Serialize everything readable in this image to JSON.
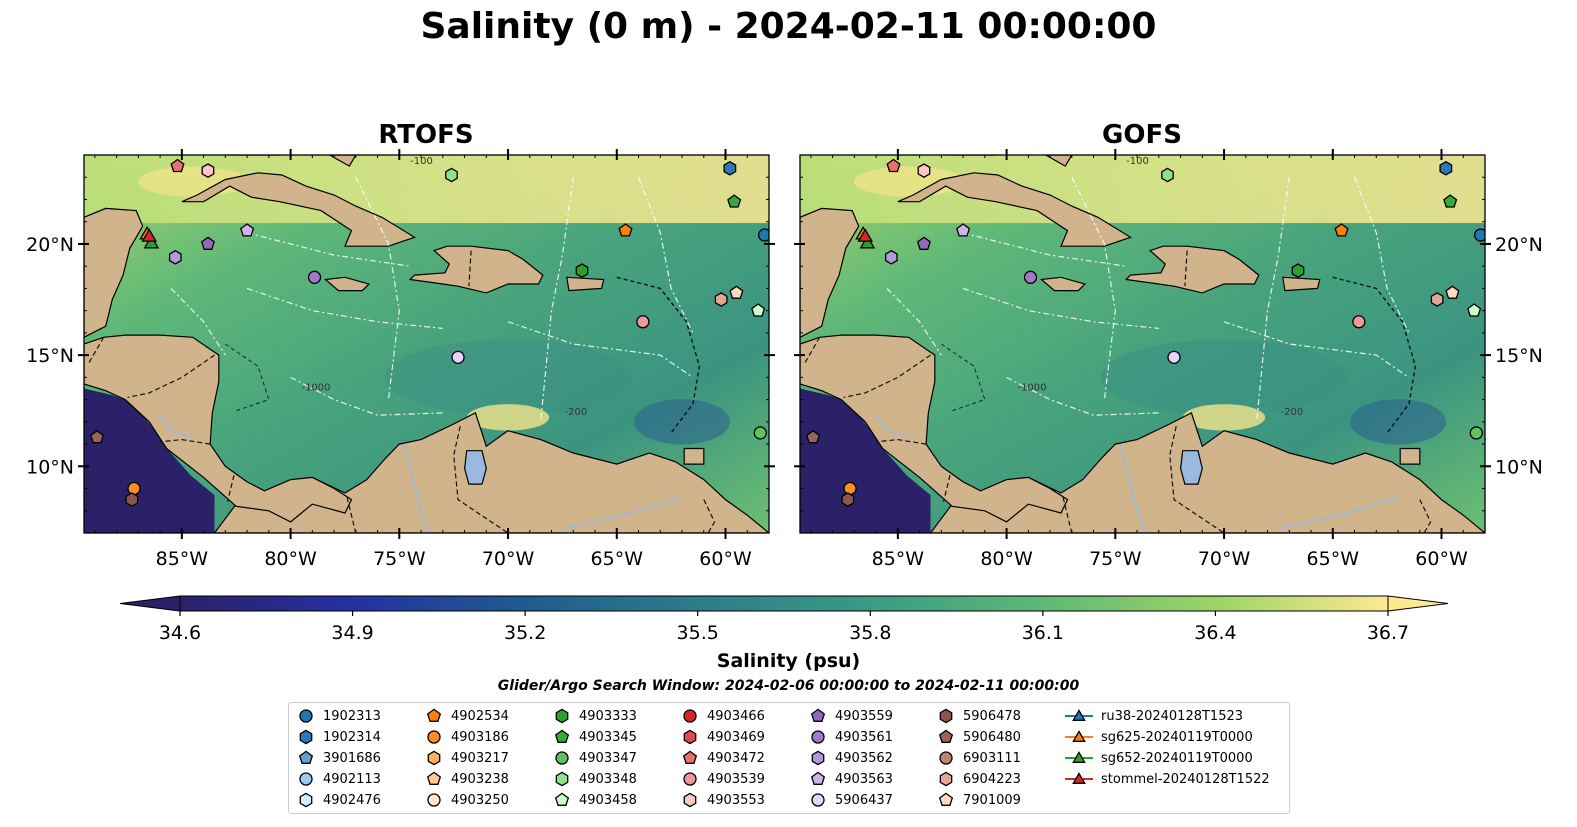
{
  "title": "Salinity (0 m) - 2024-02-11 00:00:00",
  "panels": [
    {
      "title": "RTOFS"
    },
    {
      "title": "GOFS"
    }
  ],
  "map": {
    "lon_range": [
      -89.5,
      -58.0
    ],
    "lat_range": [
      7.0,
      24.0
    ],
    "lon_ticks": [
      -85,
      -80,
      -75,
      -70,
      -65,
      -60
    ],
    "lon_tick_labels": [
      "85°W",
      "80°W",
      "75°W",
      "70°W",
      "65°W",
      "60°W"
    ],
    "lat_ticks": [
      10,
      15,
      20
    ],
    "lat_tick_labels": [
      "10°N",
      "15°N",
      "20°N"
    ],
    "contour_labels": [
      "-100",
      "-1000",
      "-200"
    ],
    "colors": {
      "land": "#d2b48c",
      "lake": "#9ab8e0",
      "pacific": "#2b2169",
      "cb_low": "#2b2169",
      "cb_high": "#fde992"
    }
  },
  "colorbar": {
    "min": 34.6,
    "max": 36.7,
    "ticks": [
      "34.6",
      "34.9",
      "35.2",
      "35.5",
      "35.8",
      "36.1",
      "36.4",
      "36.7"
    ],
    "label": "Salinity (psu)"
  },
  "search_window": "Glider/Argo Search Window: 2024-02-06 00:00:00 to 2024-02-11 00:00:00",
  "legend": [
    {
      "label": "1902313",
      "marker": "circle",
      "color": "#1f77b4",
      "lon": -58.2,
      "lat": 20.4
    },
    {
      "label": "1902314",
      "marker": "hexagon",
      "color": "#2a78b8",
      "lon": -59.8,
      "lat": 23.4
    },
    {
      "label": "3901686",
      "marker": "pentagon",
      "color": "#5fa2d9",
      "lon": null,
      "lat": null
    },
    {
      "label": "4902113",
      "marker": "circle",
      "color": "#9ec9ee",
      "lon": null,
      "lat": null
    },
    {
      "label": "4902476",
      "marker": "hexagon",
      "color": "#d6ecff",
      "lon": null,
      "lat": null
    },
    {
      "label": "4902534",
      "marker": "pentagon",
      "color": "#ff7f0e",
      "lon": -64.6,
      "lat": 20.6
    },
    {
      "label": "4903186",
      "marker": "circle",
      "color": "#ff8c24",
      "lon": -87.2,
      "lat": 9.0
    },
    {
      "label": "4903217",
      "marker": "hexagon",
      "color": "#ffae5c",
      "lon": null,
      "lat": null
    },
    {
      "label": "4903238",
      "marker": "pentagon",
      "color": "#ffcc99",
      "lon": null,
      "lat": null
    },
    {
      "label": "4903250",
      "marker": "circle",
      "color": "#ffe6cc",
      "lon": null,
      "lat": null
    },
    {
      "label": "4903333",
      "marker": "hexagon",
      "color": "#2ca02c",
      "lon": -66.6,
      "lat": 18.8
    },
    {
      "label": "4903345",
      "marker": "pentagon",
      "color": "#3aa83a",
      "lon": -59.6,
      "lat": 21.9
    },
    {
      "label": "4903347",
      "marker": "circle",
      "color": "#5fc35f",
      "lon": -58.4,
      "lat": 11.5
    },
    {
      "label": "4903348",
      "marker": "hexagon",
      "color": "#90e090",
      "lon": -72.6,
      "lat": 23.1
    },
    {
      "label": "4903458",
      "marker": "pentagon",
      "color": "#ccffcc",
      "lon": -58.5,
      "lat": 17.0
    },
    {
      "label": "4903466",
      "marker": "circle",
      "color": "#d62728",
      "lon": null,
      "lat": null
    },
    {
      "label": "4903469",
      "marker": "hexagon",
      "color": "#e04a4a",
      "lon": null,
      "lat": null
    },
    {
      "label": "4903472",
      "marker": "pentagon",
      "color": "#ea6f6f",
      "lon": -85.2,
      "lat": 23.5
    },
    {
      "label": "4903539",
      "marker": "circle",
      "color": "#f09797",
      "lon": -63.8,
      "lat": 16.5
    },
    {
      "label": "4903553",
      "marker": "hexagon",
      "color": "#ffc6c6",
      "lon": -83.8,
      "lat": 23.3
    },
    {
      "label": "4903559",
      "marker": "pentagon",
      "color": "#9467bd",
      "lon": -83.8,
      "lat": 20.0
    },
    {
      "label": "4903561",
      "marker": "circle",
      "color": "#a079c8",
      "lon": -78.9,
      "lat": 18.5
    },
    {
      "label": "4903562",
      "marker": "hexagon",
      "color": "#b597dc",
      "lon": -85.3,
      "lat": 19.4
    },
    {
      "label": "4903563",
      "marker": "pentagon",
      "color": "#cdb4ec",
      "lon": -82.0,
      "lat": 20.6
    },
    {
      "label": "5906437",
      "marker": "circle",
      "color": "#e5d4fa",
      "lon": -72.3,
      "lat": 14.9
    },
    {
      "label": "5906478",
      "marker": "hexagon",
      "color": "#8c564b",
      "lon": -87.3,
      "lat": 8.5
    },
    {
      "label": "5906480",
      "marker": "pentagon",
      "color": "#9a6558",
      "lon": -88.9,
      "lat": 11.3
    },
    {
      "label": "6903111",
      "marker": "circle",
      "color": "#bf8373",
      "lon": null,
      "lat": null
    },
    {
      "label": "6904223",
      "marker": "hexagon",
      "color": "#e2a598",
      "lon": -60.2,
      "lat": 17.5
    },
    {
      "label": "7901009",
      "marker": "pentagon",
      "color": "#ffd9c4",
      "lon": -59.5,
      "lat": 17.8
    },
    {
      "label": "ru38-20240128T1523",
      "marker": "triangle-line",
      "color": "#1f77b4",
      "lon": null,
      "lat": null
    },
    {
      "label": "sg625-20240119T0000",
      "marker": "triangle-line",
      "color": "#ff7f0e",
      "lon": -86.6,
      "lat": 20.4
    },
    {
      "label": "sg652-20240119T0000",
      "marker": "triangle-line",
      "color": "#2ca02c",
      "lon": -86.4,
      "lat": 20.0
    },
    {
      "label": "stommel-20240128T1522",
      "marker": "triangle-line",
      "color": "#d62728",
      "lon": -86.5,
      "lat": 20.3
    }
  ]
}
